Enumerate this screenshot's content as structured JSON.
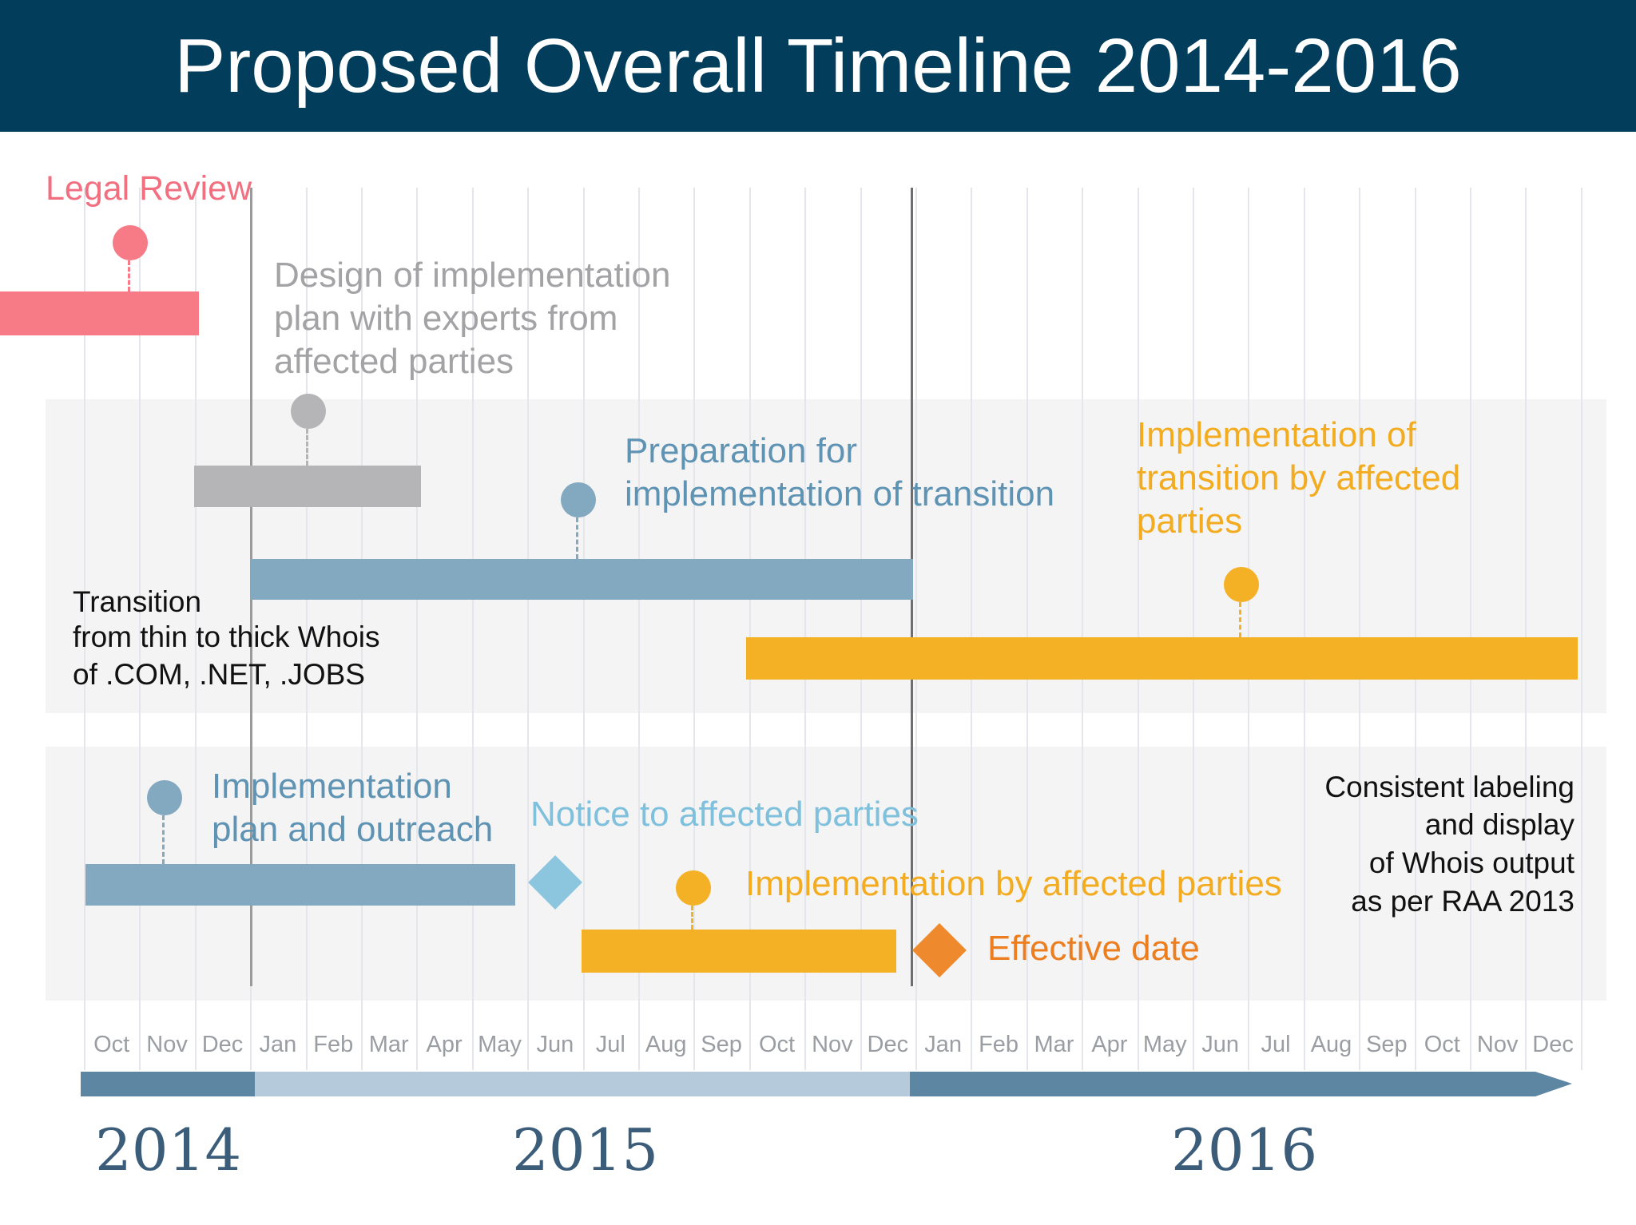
{
  "header": {
    "title": "Proposed Overall Timeline 2014-2016"
  },
  "colors": {
    "header_bg": "#023e5c",
    "legal": "#f77b87",
    "design": "#b5b4b7",
    "blue": "#82a9c0",
    "orange": "#f5b126",
    "notice": "#8cc6de",
    "effective": "#ee8a2d",
    "axis_light": "#b5cbdb",
    "axis_dark": "#5d86a3"
  },
  "labels": {
    "legal_review": "Legal Review",
    "design_line1": "Design of implementation",
    "design_line2": "plan with experts from",
    "design_line3": "affected parties",
    "prep_line1": "Preparation for",
    "prep_line2": "implementation of transition",
    "impl_trans_line1": "Implementation of",
    "impl_trans_line2": "transition by affected",
    "impl_trans_line3": "parties",
    "transition_line1": "Transition",
    "transition_line2": "from thin to thick Whois",
    "transition_line3": "of .COM, .NET, .JOBS",
    "impl_plan_line1": "Implementation",
    "impl_plan_line2": "plan and outreach",
    "notice": "Notice to affected parties",
    "impl_by": "Implementation by affected parties",
    "effective": "Effective date",
    "consistent_line1": "Consistent labeling",
    "consistent_line2": "and display",
    "consistent_line3": "of Whois output",
    "consistent_line4": "as per RAA 2013"
  },
  "months": [
    "Oct",
    "Nov",
    "Dec",
    "Jan",
    "Feb",
    "Mar",
    "Apr",
    "May",
    "Jun",
    "Jul",
    "Aug",
    "Sep",
    "Oct",
    "Nov",
    "Dec",
    "Jan",
    "Feb",
    "Mar",
    "Apr",
    "May",
    "Jun",
    "Jul",
    "Aug",
    "Sep",
    "Oct",
    "Nov",
    "Dec"
  ],
  "years": [
    "2014",
    "2015",
    "2016"
  ]
}
